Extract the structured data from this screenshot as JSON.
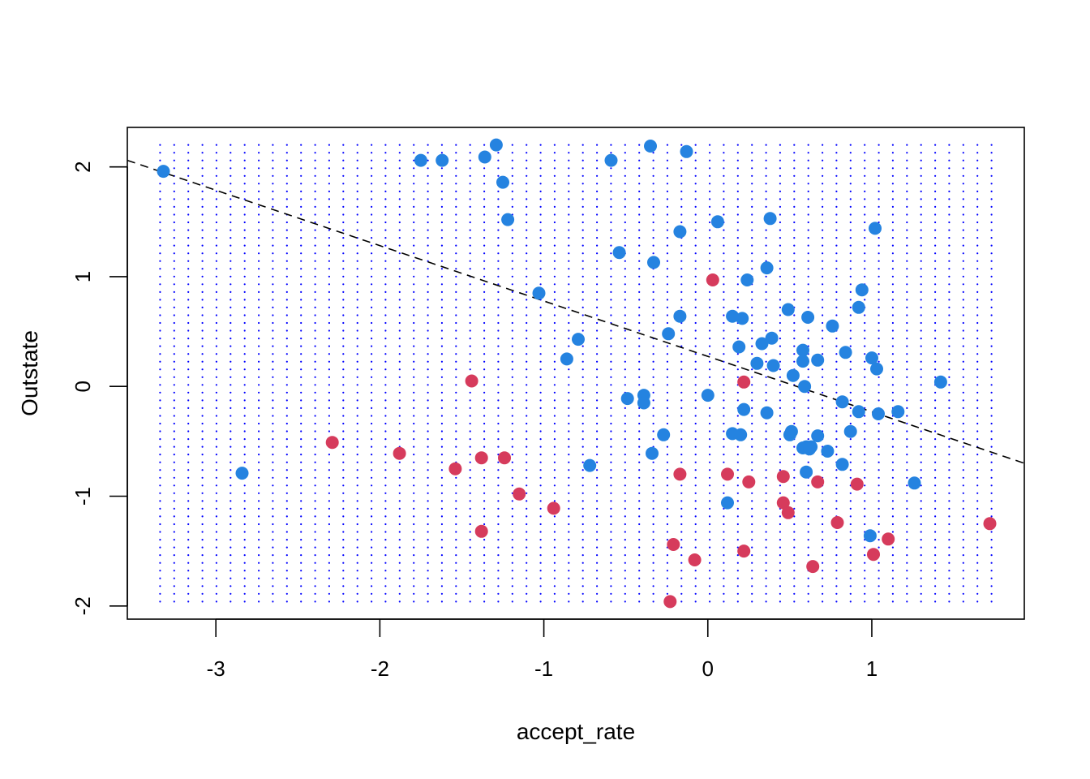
{
  "chart_data": {
    "type": "scatter",
    "title": "",
    "xlabel": "accept_rate",
    "ylabel": "Outstate",
    "xlim": [
      -3.54,
      1.93
    ],
    "ylim": [
      -2.12,
      2.36
    ],
    "x_ticks": [
      -3,
      -2,
      -1,
      0,
      1
    ],
    "y_ticks": [
      -2,
      -1,
      0,
      1,
      2
    ],
    "x_tick_labels": [
      "-3",
      "-2",
      "-1",
      "0",
      "1"
    ],
    "y_tick_labels": [
      "-2",
      "-1",
      "0",
      "1",
      "2"
    ],
    "grid": {
      "x_start": -3.34,
      "x_end": 1.73,
      "x_count": 60,
      "y_start": -1.96,
      "y_end": 2.2,
      "y_count": 60,
      "color": "#0000ff"
    },
    "decision_boundary": {
      "x": [
        -3.54,
        1.93
      ],
      "y": [
        2.06,
        -0.7
      ],
      "style": "dashed",
      "color": "#000000"
    },
    "colors": {
      "class_a": "#2583e0",
      "class_b": "#d63b5c"
    },
    "series": [
      {
        "color": "#2583e0",
        "points": [
          [
            -3.32,
            1.96
          ],
          [
            -2.84,
            -0.79
          ],
          [
            -1.75,
            2.06
          ],
          [
            -1.62,
            2.06
          ],
          [
            -1.36,
            2.09
          ],
          [
            -1.29,
            2.2
          ],
          [
            -1.25,
            1.86
          ],
          [
            -1.22,
            1.52
          ],
          [
            -1.03,
            0.85
          ],
          [
            -0.86,
            0.25
          ],
          [
            -0.79,
            0.43
          ],
          [
            -0.72,
            -0.72
          ],
          [
            -0.59,
            2.06
          ],
          [
            -0.54,
            1.22
          ],
          [
            -0.49,
            -0.11
          ],
          [
            -0.39,
            -0.08
          ],
          [
            -0.39,
            -0.15
          ],
          [
            -0.35,
            2.19
          ],
          [
            -0.33,
            1.13
          ],
          [
            -0.34,
            -0.61
          ],
          [
            -0.27,
            -0.44
          ],
          [
            -0.24,
            0.48
          ],
          [
            -0.17,
            1.41
          ],
          [
            -0.17,
            0.64
          ],
          [
            -0.13,
            2.14
          ],
          [
            0.0,
            -0.08
          ],
          [
            0.06,
            1.5
          ],
          [
            0.12,
            -1.06
          ],
          [
            0.15,
            0.64
          ],
          [
            0.15,
            -0.43
          ],
          [
            0.19,
            0.36
          ],
          [
            0.2,
            -0.44
          ],
          [
            0.21,
            0.62
          ],
          [
            0.22,
            -0.21
          ],
          [
            0.24,
            0.97
          ],
          [
            0.3,
            0.21
          ],
          [
            0.33,
            0.39
          ],
          [
            0.36,
            -0.24
          ],
          [
            0.36,
            1.08
          ],
          [
            0.38,
            1.53
          ],
          [
            0.39,
            0.44
          ],
          [
            0.4,
            0.19
          ],
          [
            0.49,
            0.7
          ],
          [
            0.5,
            -0.44
          ],
          [
            0.51,
            -0.41
          ],
          [
            0.52,
            0.1
          ],
          [
            0.58,
            0.33
          ],
          [
            0.58,
            0.23
          ],
          [
            0.58,
            -0.56
          ],
          [
            0.59,
            0.0
          ],
          [
            0.6,
            -0.78
          ],
          [
            0.6,
            -0.55
          ],
          [
            0.61,
            0.63
          ],
          [
            0.62,
            -0.57
          ],
          [
            0.63,
            -0.55
          ],
          [
            0.67,
            0.24
          ],
          [
            0.67,
            -0.45
          ],
          [
            0.73,
            -0.59
          ],
          [
            0.76,
            0.55
          ],
          [
            0.82,
            -0.14
          ],
          [
            0.82,
            -0.71
          ],
          [
            0.84,
            0.31
          ],
          [
            0.87,
            -0.41
          ],
          [
            0.92,
            -0.23
          ],
          [
            0.92,
            0.72
          ],
          [
            0.94,
            0.88
          ],
          [
            0.99,
            -1.36
          ],
          [
            1.0,
            0.26
          ],
          [
            1.02,
            1.44
          ],
          [
            1.03,
            0.16
          ],
          [
            1.04,
            -0.25
          ],
          [
            1.16,
            -0.23
          ],
          [
            1.26,
            -0.88
          ],
          [
            1.42,
            0.04
          ]
        ]
      },
      {
        "color": "#d63b5c",
        "points": [
          [
            -2.29,
            -0.51
          ],
          [
            -1.88,
            -0.61
          ],
          [
            -1.54,
            -0.75
          ],
          [
            -1.44,
            0.05
          ],
          [
            -1.38,
            -0.65
          ],
          [
            -1.38,
            -1.32
          ],
          [
            -1.24,
            -0.65
          ],
          [
            -1.15,
            -0.98
          ],
          [
            -0.94,
            -1.11
          ],
          [
            -0.23,
            -1.96
          ],
          [
            -0.21,
            -1.44
          ],
          [
            -0.17,
            -0.8
          ],
          [
            -0.08,
            -1.58
          ],
          [
            0.03,
            0.97
          ],
          [
            0.12,
            -0.8
          ],
          [
            0.22,
            0.04
          ],
          [
            0.22,
            -1.5
          ],
          [
            0.25,
            -0.87
          ],
          [
            0.46,
            -0.82
          ],
          [
            0.46,
            -1.06
          ],
          [
            0.49,
            -1.15
          ],
          [
            0.64,
            -1.64
          ],
          [
            0.67,
            -0.87
          ],
          [
            0.79,
            -1.24
          ],
          [
            0.91,
            -0.89
          ],
          [
            1.01,
            -1.53
          ],
          [
            1.1,
            -1.39
          ],
          [
            1.72,
            -1.25
          ]
        ]
      }
    ]
  }
}
